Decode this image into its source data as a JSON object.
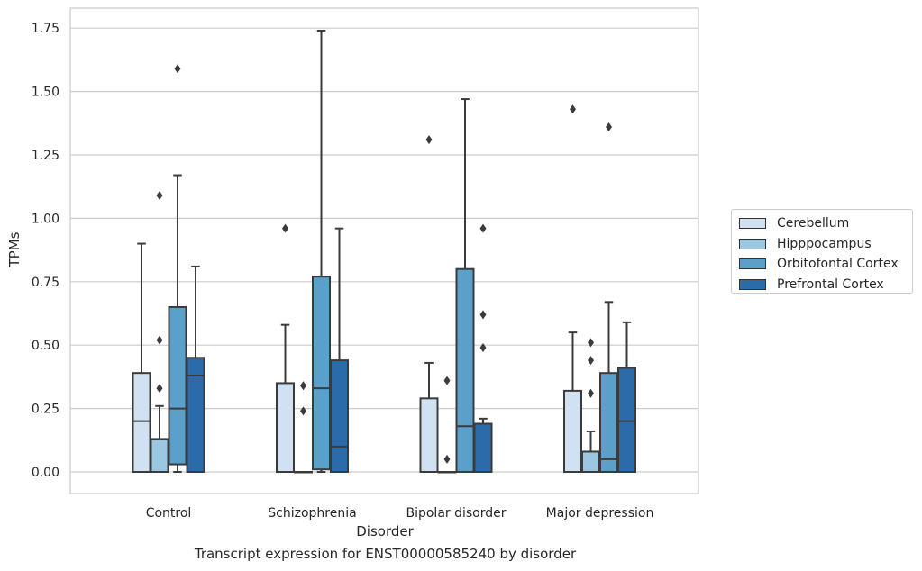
{
  "chart_data": {
    "type": "box",
    "xlabel": "Disorder",
    "ylabel": "TPMs",
    "caption": "Transcript expression for ENST00000585240 by disorder",
    "ylim": [
      -0.085,
      1.83
    ],
    "yticks": [
      0.0,
      0.25,
      0.5,
      0.75,
      1.0,
      1.25,
      1.5,
      1.75
    ],
    "ytick_labels": [
      "0.00",
      "0.25",
      "0.50",
      "0.75",
      "1.00",
      "1.25",
      "1.50",
      "1.75"
    ],
    "grid": "horizontal",
    "legend_position": "right",
    "categories": [
      "Control",
      "Schizophrenia",
      "Bipolar disorder",
      "Major depression"
    ],
    "series": [
      {
        "name": "Cerebellum",
        "color": "#d0e2f2",
        "boxes": [
          {
            "low": 0.0,
            "q1": 0.0,
            "median": 0.2,
            "q3": 0.39,
            "high": 0.9,
            "outliers": []
          },
          {
            "low": 0.0,
            "q1": 0.0,
            "median": 0.0,
            "q3": 0.35,
            "high": 0.58,
            "outliers": [
              0.96
            ]
          },
          {
            "low": 0.0,
            "q1": 0.0,
            "median": 0.0,
            "q3": 0.29,
            "high": 0.43,
            "outliers": [
              1.31
            ]
          },
          {
            "low": 0.0,
            "q1": 0.0,
            "median": 0.0,
            "q3": 0.32,
            "high": 0.55,
            "outliers": [
              1.43
            ]
          }
        ]
      },
      {
        "name": "Hipppocampus",
        "color": "#9ac8e0",
        "boxes": [
          {
            "low": 0.0,
            "q1": 0.0,
            "median": 0.0,
            "q3": 0.13,
            "high": 0.26,
            "outliers": [
              0.33,
              0.52,
              1.09
            ]
          },
          {
            "low": 0.0,
            "q1": 0.0,
            "median": 0.0,
            "q3": 0.0,
            "high": 0.0,
            "outliers": [
              0.24,
              0.34
            ]
          },
          {
            "low": 0.0,
            "q1": 0.0,
            "median": 0.0,
            "q3": 0.0,
            "high": 0.0,
            "outliers": [
              0.05,
              0.36
            ]
          },
          {
            "low": 0.0,
            "q1": 0.0,
            "median": 0.0,
            "q3": 0.08,
            "high": 0.16,
            "outliers": [
              0.31,
              0.44,
              0.51
            ]
          }
        ]
      },
      {
        "name": "Orbitofontal Cortex",
        "color": "#5b9fcb",
        "boxes": [
          {
            "low": 0.0,
            "q1": 0.03,
            "median": 0.25,
            "q3": 0.65,
            "high": 1.17,
            "outliers": [
              1.59
            ]
          },
          {
            "low": 0.0,
            "q1": 0.01,
            "median": 0.33,
            "q3": 0.77,
            "high": 1.74,
            "outliers": []
          },
          {
            "low": 0.0,
            "q1": 0.0,
            "median": 0.18,
            "q3": 0.8,
            "high": 1.47,
            "outliers": []
          },
          {
            "low": 0.0,
            "q1": 0.0,
            "median": 0.05,
            "q3": 0.39,
            "high": 0.67,
            "outliers": [
              1.36
            ]
          }
        ]
      },
      {
        "name": "Prefrontal Cortex",
        "color": "#2c6ba9",
        "boxes": [
          {
            "low": 0.0,
            "q1": 0.0,
            "median": 0.38,
            "q3": 0.45,
            "high": 0.81,
            "outliers": []
          },
          {
            "low": 0.0,
            "q1": 0.0,
            "median": 0.1,
            "q3": 0.44,
            "high": 0.96,
            "outliers": []
          },
          {
            "low": 0.0,
            "q1": 0.0,
            "median": 0.19,
            "q3": 0.19,
            "high": 0.21,
            "outliers": [
              0.49,
              0.62,
              0.96
            ]
          },
          {
            "low": 0.0,
            "q1": 0.0,
            "median": 0.2,
            "q3": 0.41,
            "high": 0.59,
            "outliers": []
          }
        ]
      }
    ]
  }
}
